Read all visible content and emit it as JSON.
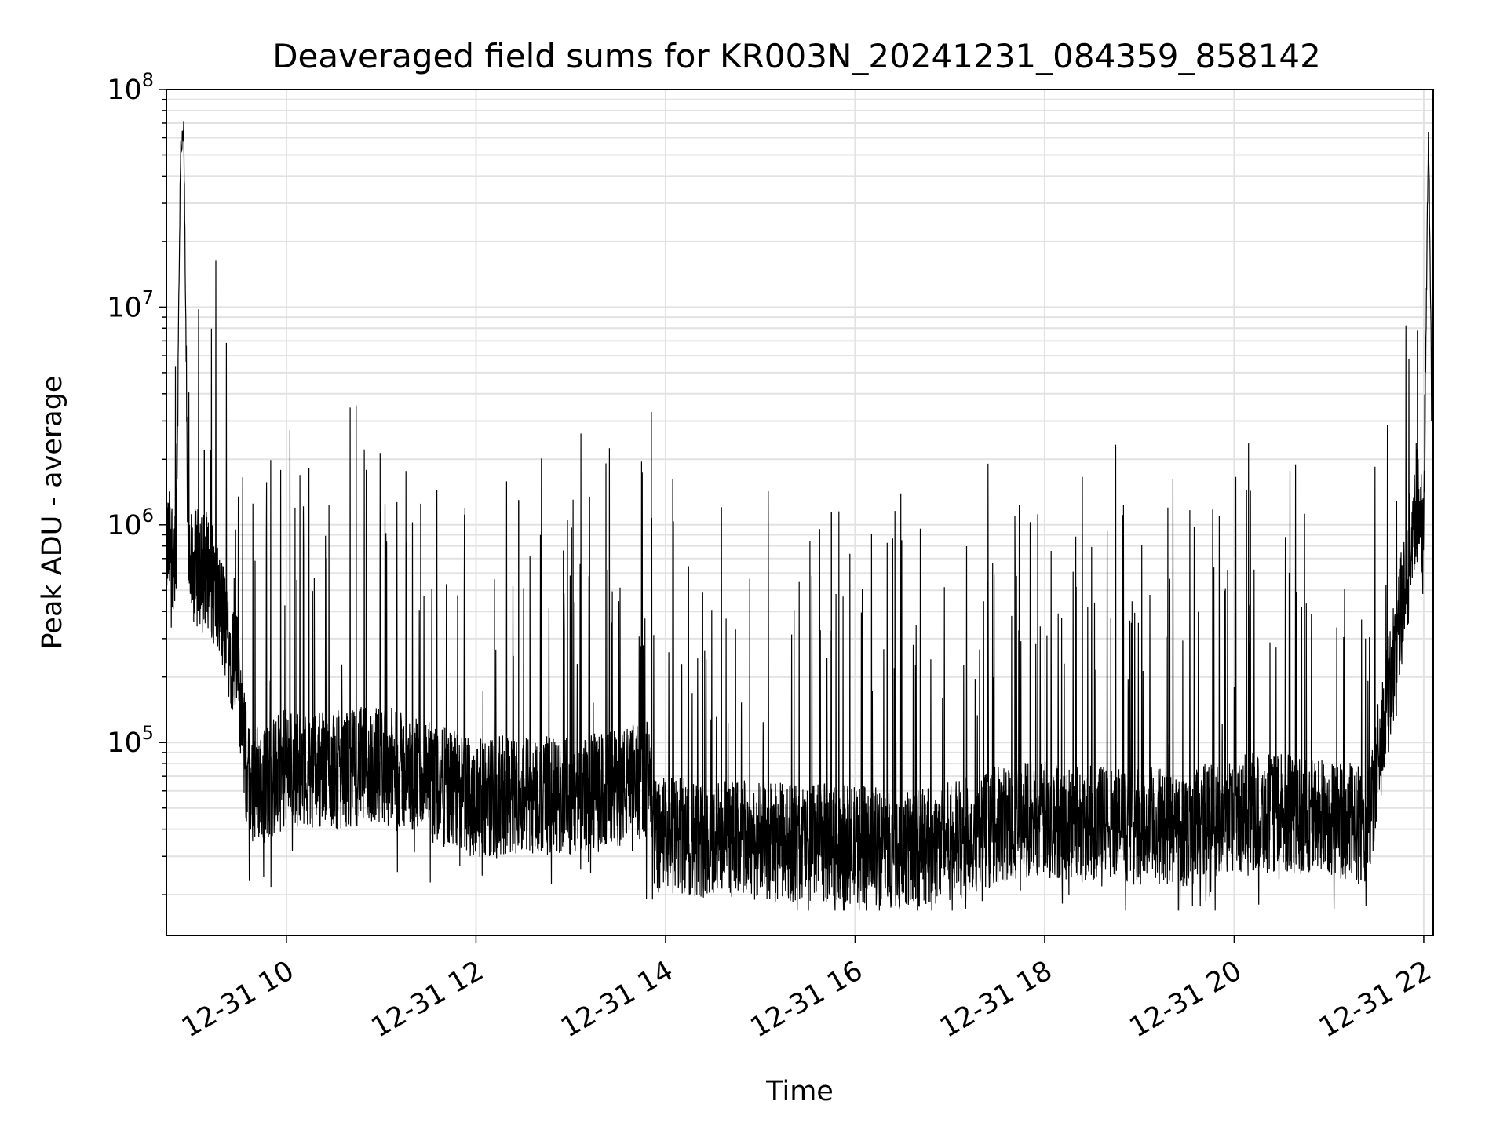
{
  "chart_data": {
    "type": "line",
    "title": "Deaveraged field sums for KR003N_20241231_084359_858142",
    "xlabel": "Time",
    "ylabel": "Peak ADU - average",
    "yscale": "log",
    "ylim": [
      13000,
      100000000
    ],
    "xlim": [
      "2024-12-31T08:44:00",
      "2024-12-31T22:06:00"
    ],
    "grid": true,
    "line_color": "#000000",
    "x_tick_labels": [
      "12-31 10",
      "12-31 12",
      "12-31 14",
      "12-31 16",
      "12-31 18",
      "12-31 20",
      "12-31 22"
    ],
    "x_tick_values": [
      "2024-12-31T10:00",
      "2024-12-31T12:00",
      "2024-12-31T14:00",
      "2024-12-31T16:00",
      "2024-12-31T18:00",
      "2024-12-31T20:00",
      "2024-12-31T22:00"
    ],
    "y_tick_base": "10",
    "y_tick_exponents": [
      "5",
      "6",
      "7",
      "8"
    ],
    "y_tick_values": [
      100000,
      1000000,
      10000000,
      100000000
    ],
    "series": [
      {
        "x": [
          "2024-12-31T08:44",
          "2024-12-31T08:50",
          "2024-12-31T08:53",
          "2024-12-31T08:55",
          "2024-12-31T08:58",
          "2024-12-31T09:00",
          "2024-12-31T09:10",
          "2024-12-31T09:20",
          "2024-12-31T09:30",
          "2024-12-31T09:35",
          "2024-12-31T09:45",
          "2024-12-31T10:00",
          "2024-12-31T10:30",
          "2024-12-31T11:00",
          "2024-12-31T11:30",
          "2024-12-31T12:00",
          "2024-12-31T12:30",
          "2024-12-31T13:00",
          "2024-12-31T13:30",
          "2024-12-31T13:50",
          "2024-12-31T13:52",
          "2024-12-31T14:30",
          "2024-12-31T15:00",
          "2024-12-31T16:00",
          "2024-12-31T16:30",
          "2024-12-31T17:00",
          "2024-12-31T17:45",
          "2024-12-31T18:30",
          "2024-12-31T19:30",
          "2024-12-31T20:00",
          "2024-12-31T21:00",
          "2024-12-31T21:25",
          "2024-12-31T21:30",
          "2024-12-31T21:40",
          "2024-12-31T21:50",
          "2024-12-31T21:55",
          "2024-12-31T22:00",
          "2024-12-31T22:03",
          "2024-12-31T22:06"
        ],
        "y": [
          750000,
          700000,
          55000000,
          63000000,
          550000,
          600000,
          600000,
          350000,
          180000,
          65000,
          60000,
          72000,
          70000,
          75000,
          62000,
          52000,
          55000,
          52000,
          58000,
          65000,
          35000,
          34000,
          33000,
          32000,
          30000,
          33000,
          42000,
          40000,
          38000,
          45000,
          43000,
          38000,
          70000,
          200000,
          600000,
          1200000,
          1000000,
          70000000,
          1000000
        ]
      }
    ],
    "spikes": [
      {
        "x": "2024-12-31T09:08",
        "y": 2200000
      },
      {
        "x": "2024-12-31T09:12",
        "y": 2200000
      },
      {
        "x": "2024-12-31T11:25",
        "y": 1250000
      },
      {
        "x": "2024-12-31T12:27",
        "y": 1300000
      },
      {
        "x": "2024-12-31T13:51",
        "y": 3300000
      },
      {
        "x": "2024-12-31T15:45",
        "y": 1150000
      },
      {
        "x": "2024-12-31T21:56",
        "y": 7800000
      }
    ]
  }
}
